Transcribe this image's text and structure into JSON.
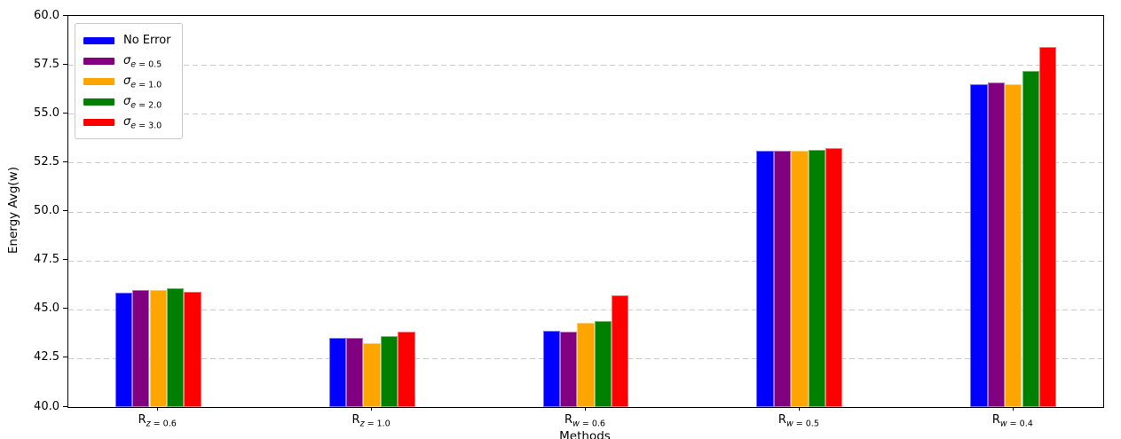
{
  "chart_data": {
    "type": "bar",
    "title": "",
    "xlabel": "Methods",
    "ylabel": "Energy Avg(w)",
    "ylim": [
      40.0,
      60.0
    ],
    "yticks": [
      "40.0",
      "42.5",
      "45.0",
      "47.5",
      "50.0",
      "52.5",
      "55.0",
      "57.5",
      "60.0"
    ],
    "grid": "horizontal-dashed",
    "legend_position": "upper-left",
    "categories": [
      {
        "base": "R",
        "var": "z",
        "rest": " = 0.6"
      },
      {
        "base": "R",
        "var": "z",
        "rest": " = 1.0"
      },
      {
        "base": "R",
        "var": "w",
        "rest": " = 0.6"
      },
      {
        "base": "R",
        "var": "w",
        "rest": " = 0.5"
      },
      {
        "base": "R",
        "var": "w",
        "rest": " = 0.4"
      }
    ],
    "series": [
      {
        "label": {
          "base": "No Error",
          "var": "",
          "rest": ""
        },
        "color": "#0000ff",
        "values": [
          45.85,
          43.55,
          43.9,
          53.1,
          56.5
        ]
      },
      {
        "label": {
          "base": "σ",
          "var": "e",
          "rest": " = 0.5"
        },
        "color": "#800080",
        "values": [
          46.0,
          43.55,
          43.85,
          53.1,
          56.6
        ]
      },
      {
        "label": {
          "base": "σ",
          "var": "e",
          "rest": " = 1.0"
        },
        "color": "#ffa500",
        "values": [
          46.0,
          43.25,
          44.3,
          53.1,
          56.5
        ]
      },
      {
        "label": {
          "base": "σ",
          "var": "e",
          "rest": " = 2.0"
        },
        "color": "#008000",
        "values": [
          46.1,
          43.65,
          44.4,
          53.15,
          57.2
        ]
      },
      {
        "label": {
          "base": "σ",
          "var": "e",
          "rest": " = 3.0"
        },
        "color": "#ff0000",
        "values": [
          45.9,
          43.85,
          45.7,
          53.25,
          58.4
        ]
      }
    ]
  }
}
